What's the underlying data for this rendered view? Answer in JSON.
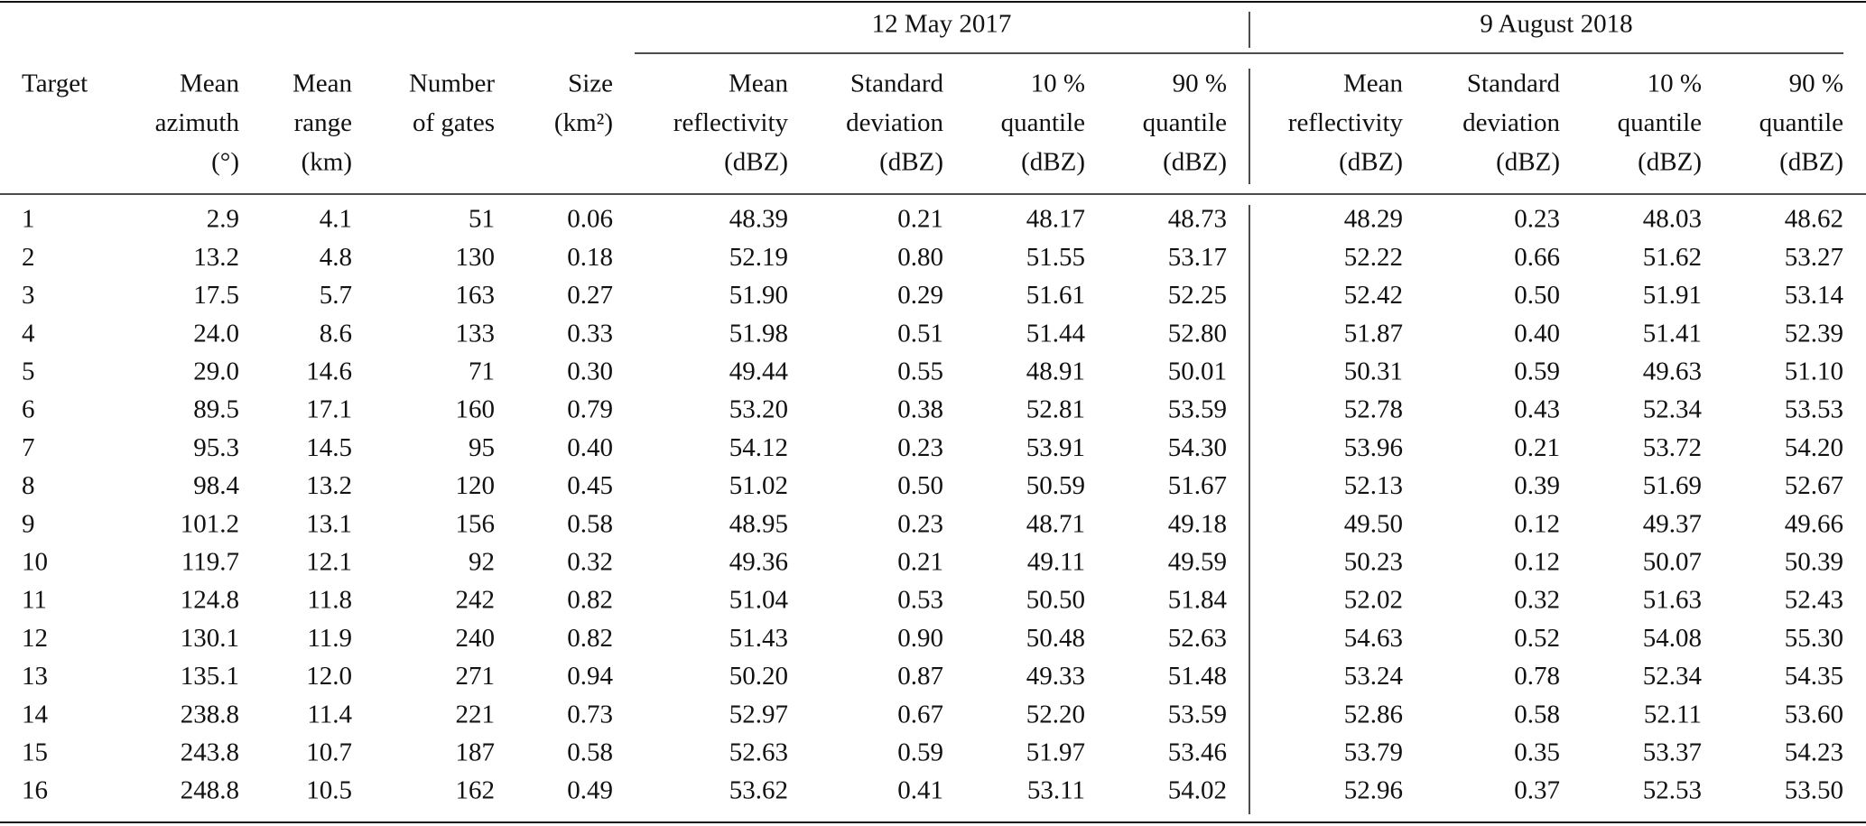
{
  "table": {
    "group_headers": [
      "12 May 2017",
      "9 August 2018"
    ],
    "columns": [
      [
        "Target"
      ],
      [
        "Mean",
        "azimuth",
        "(°)"
      ],
      [
        "Mean",
        "range",
        "(km)"
      ],
      [
        "Number",
        "of gates"
      ],
      [
        "Size",
        "(km²)"
      ],
      [
        "Mean",
        "reflectivity",
        "(dBZ)"
      ],
      [
        "Standard",
        "deviation",
        "(dBZ)"
      ],
      [
        "10 %",
        "quantile",
        "(dBZ)"
      ],
      [
        "90 %",
        "quantile",
        "(dBZ)"
      ],
      [
        "Mean",
        "reflectivity",
        "(dBZ)"
      ],
      [
        "Standard",
        "deviation",
        "(dBZ)"
      ],
      [
        "10 %",
        "quantile",
        "(dBZ)"
      ],
      [
        "90 %",
        "quantile",
        "(dBZ)"
      ]
    ],
    "rows": [
      [
        "1",
        "2.9",
        "4.1",
        "51",
        "0.06",
        "48.39",
        "0.21",
        "48.17",
        "48.73",
        "48.29",
        "0.23",
        "48.03",
        "48.62"
      ],
      [
        "2",
        "13.2",
        "4.8",
        "130",
        "0.18",
        "52.19",
        "0.80",
        "51.55",
        "53.17",
        "52.22",
        "0.66",
        "51.62",
        "53.27"
      ],
      [
        "3",
        "17.5",
        "5.7",
        "163",
        "0.27",
        "51.90",
        "0.29",
        "51.61",
        "52.25",
        "52.42",
        "0.50",
        "51.91",
        "53.14"
      ],
      [
        "4",
        "24.0",
        "8.6",
        "133",
        "0.33",
        "51.98",
        "0.51",
        "51.44",
        "52.80",
        "51.87",
        "0.40",
        "51.41",
        "52.39"
      ],
      [
        "5",
        "29.0",
        "14.6",
        "71",
        "0.30",
        "49.44",
        "0.55",
        "48.91",
        "50.01",
        "50.31",
        "0.59",
        "49.63",
        "51.10"
      ],
      [
        "6",
        "89.5",
        "17.1",
        "160",
        "0.79",
        "53.20",
        "0.38",
        "52.81",
        "53.59",
        "52.78",
        "0.43",
        "52.34",
        "53.53"
      ],
      [
        "7",
        "95.3",
        "14.5",
        "95",
        "0.40",
        "54.12",
        "0.23",
        "53.91",
        "54.30",
        "53.96",
        "0.21",
        "53.72",
        "54.20"
      ],
      [
        "8",
        "98.4",
        "13.2",
        "120",
        "0.45",
        "51.02",
        "0.50",
        "50.59",
        "51.67",
        "52.13",
        "0.39",
        "51.69",
        "52.67"
      ],
      [
        "9",
        "101.2",
        "13.1",
        "156",
        "0.58",
        "48.95",
        "0.23",
        "48.71",
        "49.18",
        "49.50",
        "0.12",
        "49.37",
        "49.66"
      ],
      [
        "10",
        "119.7",
        "12.1",
        "92",
        "0.32",
        "49.36",
        "0.21",
        "49.11",
        "49.59",
        "50.23",
        "0.12",
        "50.07",
        "50.39"
      ],
      [
        "11",
        "124.8",
        "11.8",
        "242",
        "0.82",
        "51.04",
        "0.53",
        "50.50",
        "51.84",
        "52.02",
        "0.32",
        "51.63",
        "52.43"
      ],
      [
        "12",
        "130.1",
        "11.9",
        "240",
        "0.82",
        "51.43",
        "0.90",
        "50.48",
        "52.63",
        "54.63",
        "0.52",
        "54.08",
        "55.30"
      ],
      [
        "13",
        "135.1",
        "12.0",
        "271",
        "0.94",
        "50.20",
        "0.87",
        "49.33",
        "51.48",
        "53.24",
        "0.78",
        "52.34",
        "54.35"
      ],
      [
        "14",
        "238.8",
        "11.4",
        "221",
        "0.73",
        "52.97",
        "0.67",
        "52.20",
        "53.59",
        "52.86",
        "0.58",
        "52.11",
        "53.60"
      ],
      [
        "15",
        "243.8",
        "10.7",
        "187",
        "0.58",
        "52.63",
        "0.59",
        "51.97",
        "53.46",
        "53.79",
        "0.35",
        "53.37",
        "54.23"
      ],
      [
        "16",
        "248.8",
        "10.5",
        "162",
        "0.49",
        "53.62",
        "0.41",
        "53.11",
        "54.02",
        "52.96",
        "0.37",
        "52.53",
        "53.50"
      ]
    ]
  }
}
